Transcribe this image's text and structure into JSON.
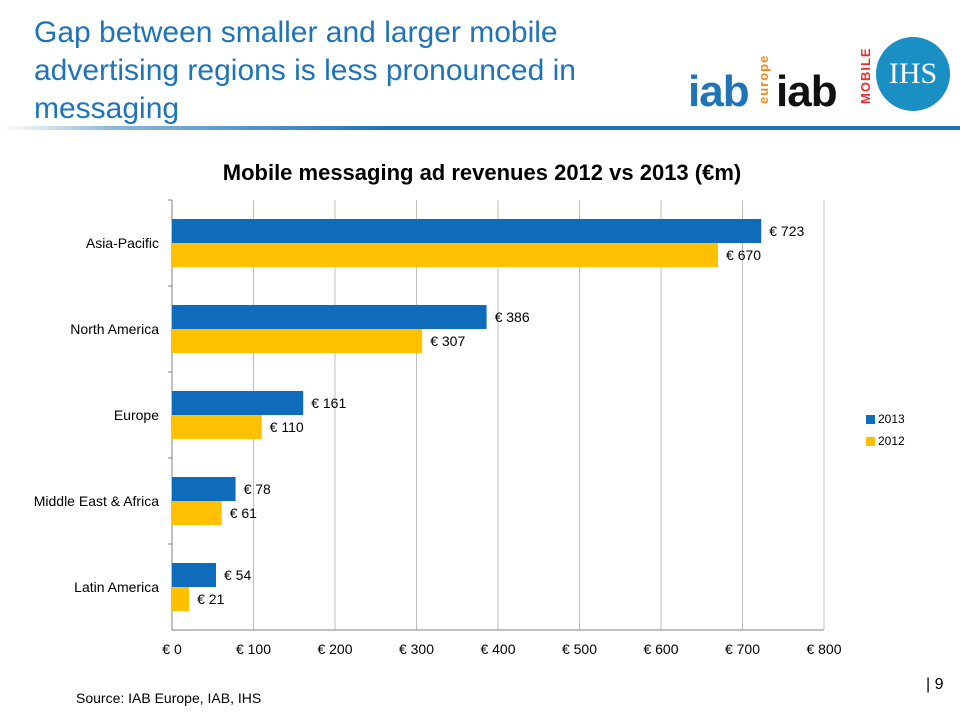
{
  "slide": {
    "title": "Gap between smaller and larger mobile advertising regions is less pronounced in messaging",
    "source": "Source: IAB Europe, IAB, IHS",
    "page_number": "| 9"
  },
  "logos": {
    "iab_europe_text": "iab",
    "iab_europe_sub": "europe",
    "iab_mobile_text": "iab",
    "iab_mobile_sub": "MOBILE",
    "ihs_text": "IHS"
  },
  "colors": {
    "title_blue": "#1f74b8",
    "series_2013": "#0f6cbd",
    "series_2012": "#ffc000",
    "grid": "#bfbfbf"
  },
  "chart_data": {
    "type": "bar",
    "orientation": "horizontal",
    "title": "Mobile messaging ad revenues 2012 vs 2013 (€m)",
    "categories": [
      "Asia-Pacific",
      "North America",
      "Europe",
      "Middle East & Africa",
      "Latin America"
    ],
    "series": [
      {
        "name": "2013",
        "values": [
          723,
          386,
          161,
          78,
          54
        ],
        "labels": [
          "€ 723",
          "€ 386",
          "€ 161",
          "€ 78",
          "€ 54"
        ]
      },
      {
        "name": "2012",
        "values": [
          670,
          307,
          110,
          61,
          21
        ],
        "labels": [
          "€ 670",
          "€ 307",
          "€ 110",
          "€ 61",
          "€ 21"
        ]
      }
    ],
    "xlim": [
      0,
      800
    ],
    "x_ticks": [
      0,
      100,
      200,
      300,
      400,
      500,
      600,
      700,
      800
    ],
    "x_tick_labels": [
      "€ 0",
      "€ 100",
      "€ 200",
      "€ 300",
      "€ 400",
      "€ 500",
      "€ 600",
      "€ 700",
      "€ 800"
    ],
    "grid": true,
    "legend_position": "right"
  }
}
